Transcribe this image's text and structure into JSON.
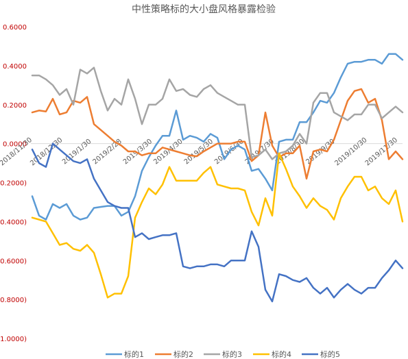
{
  "chart_data": {
    "type": "line",
    "title": "中性策略标的大小盘风格暴露检验",
    "xlabel": "",
    "ylabel": "",
    "ylim": [
      -1.0,
      0.6
    ],
    "y_ticks": [
      0.6,
      0.4,
      0.2,
      0.0,
      -0.2,
      -0.4,
      -0.6,
      -0.8,
      -1.0
    ],
    "y_tick_labels": [
      "0.6000",
      "0.4000",
      "0.2000",
      "0.0000",
      "(0.2000)",
      "(0.4000)",
      "(0.6000)",
      "(0.8000)",
      "(1.0000)"
    ],
    "x_tick_labels": [
      "2018/11/30",
      "2018/12/30",
      "2019/1/30",
      "2019/2/28",
      "2019/3/30",
      "2019/4/30",
      "2019/5/30",
      "2019/6/30",
      "2019/7/30",
      "2019/8/30",
      "2019/9/30",
      "2019/10/30",
      "2019/11/30"
    ],
    "grid": false,
    "legend_position": "bottom",
    "colors": [
      "#5B9BD5",
      "#ED7D31",
      "#A5A5A5",
      "#FFC000",
      "#4472C4"
    ],
    "series": [
      {
        "name": "标的1",
        "values": [
          -0.27,
          -0.37,
          -0.39,
          -0.31,
          -0.33,
          -0.31,
          -0.37,
          -0.39,
          -0.38,
          -0.33,
          -0.325,
          -0.32,
          -0.32,
          -0.37,
          -0.35,
          -0.27,
          -0.14,
          -0.07,
          -0.01,
          0.04,
          0.04,
          0.17,
          0.02,
          0.04,
          0.03,
          0.01,
          0.05,
          0.03,
          -0.08,
          -0.03,
          -0.01,
          -0.03,
          -0.14,
          -0.13,
          -0.18,
          -0.24,
          0.01,
          0.02,
          0.02,
          0.11,
          0.11,
          0.16,
          0.22,
          0.21,
          0.26,
          0.34,
          0.41,
          0.42,
          0.42,
          0.43,
          0.43,
          0.41,
          0.46,
          0.46,
          0.43
        ]
      },
      {
        "name": "标的2",
        "values": [
          0.16,
          0.17,
          0.165,
          0.23,
          0.15,
          0.16,
          0.22,
          0.21,
          0.24,
          0.1,
          0.07,
          0.04,
          0.01,
          -0.01,
          -0.04,
          -0.04,
          -0.06,
          -0.05,
          -0.05,
          -0.02,
          -0.03,
          -0.04,
          -0.05,
          -0.06,
          -0.065,
          -0.04,
          -0.02,
          0.0,
          0.0,
          0.0,
          0.01,
          0.01,
          -0.09,
          -0.06,
          0.16,
          -0.01,
          -0.07,
          -0.05,
          -0.05,
          -0.01,
          -0.18,
          -0.04,
          -0.03,
          -0.04,
          0.02,
          0.12,
          0.22,
          0.27,
          0.28,
          0.21,
          0.23,
          0.12,
          -0.08,
          -0.04,
          -0.08
        ]
      },
      {
        "name": "标的3",
        "values": [
          0.35,
          0.35,
          0.33,
          0.3,
          0.25,
          0.28,
          0.2,
          0.38,
          0.36,
          0.39,
          0.27,
          0.17,
          0.23,
          0.2,
          0.33,
          0.23,
          0.1,
          0.2,
          0.2,
          0.23,
          0.33,
          0.27,
          0.28,
          0.25,
          0.24,
          0.28,
          0.3,
          0.26,
          0.24,
          0.22,
          0.2,
          0.2,
          -0.07,
          -0.06,
          -0.03,
          -0.08,
          -0.05,
          -0.04,
          -0.01,
          0.05,
          0.0,
          0.21,
          0.26,
          0.26,
          0.16,
          0.14,
          0.12,
          0.15,
          0.15,
          0.2,
          0.2,
          0.13,
          0.16,
          0.19,
          0.16
        ]
      },
      {
        "name": "标的4",
        "values": [
          -0.38,
          -0.39,
          -0.4,
          -0.46,
          -0.52,
          -0.51,
          -0.54,
          -0.55,
          -0.52,
          -0.56,
          -0.67,
          -0.79,
          -0.77,
          -0.77,
          -0.68,
          -0.38,
          -0.3,
          -0.23,
          -0.26,
          -0.21,
          -0.12,
          -0.19,
          -0.19,
          -0.19,
          -0.19,
          -0.15,
          -0.12,
          -0.21,
          -0.22,
          -0.23,
          -0.23,
          -0.24,
          -0.35,
          -0.42,
          -0.28,
          -0.37,
          -0.05,
          -0.13,
          -0.22,
          -0.27,
          -0.33,
          -0.28,
          -0.32,
          -0.34,
          -0.39,
          -0.28,
          -0.22,
          -0.17,
          -0.17,
          -0.24,
          -0.22,
          -0.28,
          -0.31,
          -0.24,
          -0.4
        ]
      },
      {
        "name": "标的5",
        "values": [
          -0.03,
          -0.1,
          -0.12,
          0.0,
          -0.03,
          -0.06,
          -0.09,
          -0.1,
          -0.08,
          -0.18,
          -0.24,
          -0.3,
          -0.32,
          -0.33,
          -0.33,
          -0.48,
          -0.46,
          -0.49,
          -0.48,
          -0.47,
          -0.47,
          -0.46,
          -0.63,
          -0.64,
          -0.63,
          -0.63,
          -0.62,
          -0.62,
          -0.63,
          -0.6,
          -0.6,
          -0.6,
          -0.45,
          -0.53,
          -0.75,
          -0.81,
          -0.67,
          -0.68,
          -0.7,
          -0.71,
          -0.69,
          -0.74,
          -0.77,
          -0.74,
          -0.79,
          -0.75,
          -0.72,
          -0.75,
          -0.77,
          -0.74,
          -0.74,
          -0.69,
          -0.65,
          -0.6,
          -0.64
        ]
      }
    ]
  }
}
